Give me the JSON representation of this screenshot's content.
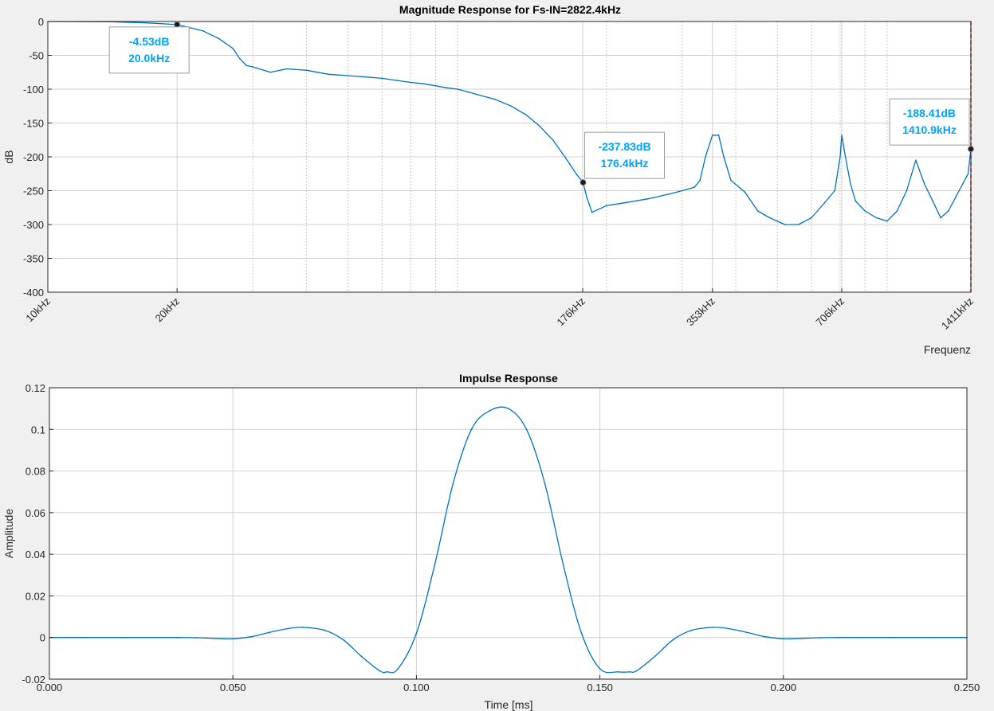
{
  "colors": {
    "figure_bg": "#f0f0f0",
    "axes_bg": "#ffffff",
    "line": "#0072bd",
    "datatip_text": "#00a2ff",
    "cursor_line": "#ff0000",
    "grid": "#d0d0d0"
  },
  "chart_data": [
    {
      "type": "line",
      "title": "Magnitude Response for Fs-IN=2822.4kHz",
      "xlabel": "Frequenz",
      "ylabel": "dB",
      "xscale": "log",
      "xlim": [
        10,
        1411
      ],
      "ylim": [
        -400,
        0
      ],
      "grid": "on",
      "x_ticks": [
        10,
        20,
        176,
        353,
        706,
        1411
      ],
      "x_tick_labels": [
        "10kHz",
        "20kHz",
        "176kHz",
        "353kHz",
        "706kHz",
        "1411kHz"
      ],
      "y_ticks": [
        0,
        -50,
        -100,
        -150,
        -200,
        -250,
        -300,
        -350,
        -400
      ],
      "y_tick_labels": [
        "0",
        "-50",
        "-100",
        "-150",
        "-200",
        "-250",
        "-300",
        "-350",
        "-400"
      ],
      "series": [
        {
          "x": [
            10,
            14,
            17,
            20,
            23,
            25,
            27,
            28,
            29,
            30,
            33,
            36,
            40,
            45,
            50,
            55,
            60,
            65,
            70,
            75,
            80,
            85,
            90,
            95,
            100,
            110,
            120,
            130,
            140,
            150,
            160,
            170,
            176.4,
            180,
            185,
            200,
            220,
            250,
            280,
            300,
            320,
            330,
            340,
            353,
            365,
            375,
            390,
            420,
            450,
            480,
            520,
            560,
            600,
            640,
            680,
            700,
            706,
            720,
            740,
            760,
            800,
            850,
            900,
            950,
            1000,
            1050,
            1100,
            1150,
            1200,
            1250,
            1300,
            1350,
            1390,
            1410.9
          ],
          "y": [
            0,
            -0.5,
            -2,
            -4.53,
            -14,
            -25,
            -40,
            -55,
            -65,
            -67,
            -75,
            -70,
            -72,
            -78,
            -80,
            -82,
            -84,
            -87,
            -90,
            -92,
            -95,
            -98,
            -100,
            -104,
            -108,
            -115,
            -125,
            -138,
            -155,
            -175,
            -200,
            -225,
            -237.83,
            -260,
            -282,
            -272,
            -268,
            -262,
            -255,
            -250,
            -245,
            -235,
            -200,
            -168,
            -168,
            -200,
            -235,
            -252,
            -280,
            -290,
            -300,
            -300,
            -290,
            -270,
            -250,
            -200,
            -168,
            -200,
            -240,
            -265,
            -280,
            -290,
            -295,
            -280,
            -250,
            -205,
            -240,
            -265,
            -290,
            -280,
            -260,
            -240,
            -225,
            -188.41
          ]
        }
      ],
      "annotations": [
        {
          "label_db": "-4.53dB",
          "label_freq": "20.0kHz",
          "x": 20.0,
          "y": -4.53
        },
        {
          "label_db": "-237.83dB",
          "label_freq": "176.4kHz",
          "x": 176.4,
          "y": -237.83
        },
        {
          "label_db": "-188.41dB",
          "label_freq": "1410.9kHz",
          "x": 1410.9,
          "y": -188.41
        }
      ]
    },
    {
      "type": "line",
      "title": "Impulse Response",
      "xlabel": "Time [ms]",
      "ylabel": "Amplitude",
      "xlim": [
        0,
        0.25
      ],
      "ylim": [
        -0.02,
        0.12
      ],
      "grid": "on",
      "x_ticks": [
        0,
        0.05,
        0.1,
        0.15,
        0.2,
        0.25
      ],
      "x_tick_labels": [
        "0.000",
        "0.050",
        "0.100",
        "0.150",
        "0.200",
        "0.250"
      ],
      "y_ticks": [
        0.12,
        0.1,
        0.08,
        0.06,
        0.04,
        0.02,
        0,
        -0.02
      ],
      "y_tick_labels": [
        "0.12",
        "0.1",
        "0.08",
        "0.06",
        "0.04",
        "0.02",
        "0",
        "-0.02"
      ],
      "series": [
        {
          "x": [
            0,
            0.01,
            0.02,
            0.03,
            0.035,
            0.04,
            0.045,
            0.05,
            0.055,
            0.06,
            0.065,
            0.069,
            0.075,
            0.08,
            0.085,
            0.09,
            0.092,
            0.095,
            0.1,
            0.105,
            0.11,
            0.115,
            0.12,
            0.125,
            0.13,
            0.135,
            0.14,
            0.145,
            0.15,
            0.155,
            0.158,
            0.16,
            0.165,
            0.17,
            0.175,
            0.181,
            0.185,
            0.19,
            0.195,
            0.2,
            0.205,
            0.21,
            0.215,
            0.22,
            0.23,
            0.24,
            0.25
          ],
          "y": [
            0,
            0,
            0,
            0,
            0,
            -0.0001,
            -0.0004,
            -0.0006,
            0.0004,
            0.0025,
            0.0043,
            0.0049,
            0.0035,
            -0.001,
            -0.009,
            -0.016,
            -0.0165,
            -0.015,
            0.002,
            0.035,
            0.074,
            0.1,
            0.109,
            0.11,
            0.1,
            0.074,
            0.035,
            0.002,
            -0.015,
            -0.0165,
            -0.0165,
            -0.016,
            -0.009,
            -0.001,
            0.0035,
            0.0049,
            0.0043,
            0.0025,
            0.0004,
            -0.0006,
            -0.0004,
            -0.0001,
            0,
            0,
            0,
            0,
            0
          ]
        }
      ]
    }
  ]
}
